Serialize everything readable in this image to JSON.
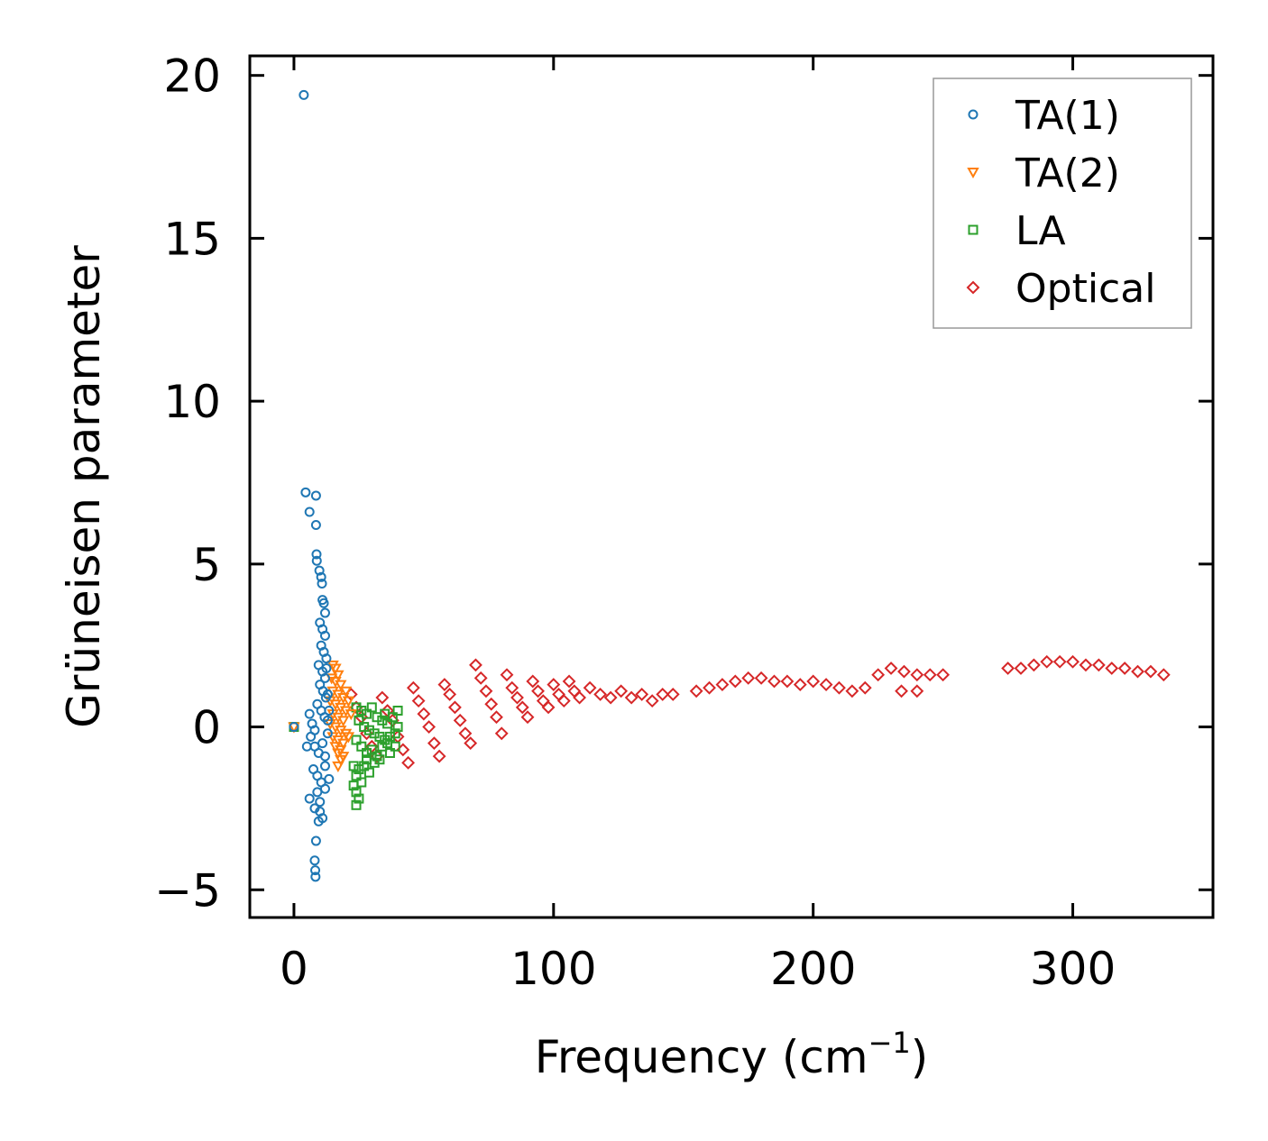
{
  "chart_data": {
    "type": "scatter",
    "title": "",
    "xlabel": "Frequency (cm",
    "xlabel_sup": "−1",
    "xlabel_end": ")",
    "ylabel": "Grüneisen parameter",
    "xlim": [
      -17,
      354
    ],
    "ylim": [
      -5.85,
      20.6
    ],
    "xticks": [
      0,
      100,
      200,
      300
    ],
    "xtick_labels": [
      "0",
      "100",
      "200",
      "300"
    ],
    "yticks": [
      -5,
      0,
      5,
      10,
      15,
      20
    ],
    "ytick_labels": [
      "−5",
      "0",
      "5",
      "10",
      "15",
      "20"
    ],
    "legend_position": "top-right",
    "series": [
      {
        "name": "TA(1)",
        "marker": "circle",
        "color": "#1f77b4",
        "points": [
          [
            0,
            0
          ],
          [
            3.8,
            19.4
          ],
          [
            4.5,
            7.2
          ],
          [
            8.5,
            7.1
          ],
          [
            6,
            6.6
          ],
          [
            8.5,
            6.2
          ],
          [
            8.7,
            5.3
          ],
          [
            8.8,
            5.1
          ],
          [
            9.8,
            4.8
          ],
          [
            10.5,
            4.6
          ],
          [
            10.8,
            4.4
          ],
          [
            11,
            3.9
          ],
          [
            11.5,
            3.8
          ],
          [
            12,
            3.5
          ],
          [
            10,
            3.2
          ],
          [
            11,
            3.0
          ],
          [
            12,
            2.8
          ],
          [
            10.5,
            2.5
          ],
          [
            11.5,
            2.3
          ],
          [
            12.5,
            2.1
          ],
          [
            9.5,
            1.9
          ],
          [
            11,
            1.7
          ],
          [
            12,
            1.5
          ],
          [
            10,
            1.3
          ],
          [
            11.2,
            1.1
          ],
          [
            12.3,
            0.9
          ],
          [
            9,
            0.7
          ],
          [
            10.5,
            0.5
          ],
          [
            11.8,
            0.3
          ],
          [
            13,
            0.2
          ],
          [
            6,
            0.4
          ],
          [
            7,
            0.1
          ],
          [
            8,
            -0.1
          ],
          [
            6.5,
            -0.3
          ],
          [
            5,
            -0.6
          ],
          [
            8,
            -0.6
          ],
          [
            9.5,
            -0.8
          ],
          [
            11,
            -0.5
          ],
          [
            12,
            -0.9
          ],
          [
            7.5,
            -1.3
          ],
          [
            9,
            -1.5
          ],
          [
            10.5,
            -1.7
          ],
          [
            12,
            -1.9
          ],
          [
            9,
            -2.0
          ],
          [
            10,
            -2.3
          ],
          [
            6,
            -2.2
          ],
          [
            8,
            -2.5
          ],
          [
            10,
            -2.6
          ],
          [
            11,
            -2.8
          ],
          [
            9.5,
            -2.9
          ],
          [
            8.5,
            -3.5
          ],
          [
            8,
            -4.1
          ],
          [
            8.2,
            -4.4
          ],
          [
            8.3,
            -4.6
          ],
          [
            12.5,
            1.8
          ],
          [
            13,
            1.0
          ],
          [
            13.5,
            0.5
          ],
          [
            13,
            -0.2
          ],
          [
            12,
            -1.2
          ],
          [
            13.5,
            -1.6
          ]
        ]
      },
      {
        "name": "TA(2)",
        "marker": "triangle",
        "color": "#ff7f0e",
        "points": [
          [
            0,
            0
          ],
          [
            15,
            1.9
          ],
          [
            16,
            1.8
          ],
          [
            17,
            1.6
          ],
          [
            14.5,
            1.5
          ],
          [
            16,
            1.4
          ],
          [
            18,
            1.3
          ],
          [
            15,
            1.1
          ],
          [
            17,
            1.0
          ],
          [
            19,
            0.9
          ],
          [
            14,
            0.8
          ],
          [
            16,
            0.7
          ],
          [
            18,
            0.6
          ],
          [
            20,
            0.5
          ],
          [
            15,
            0.4
          ],
          [
            17,
            0.3
          ],
          [
            19,
            0.2
          ],
          [
            14,
            0.1
          ],
          [
            16,
            0.0
          ],
          [
            18,
            -0.1
          ],
          [
            20,
            -0.2
          ],
          [
            15,
            -0.3
          ],
          [
            17,
            -0.4
          ],
          [
            19,
            -0.5
          ],
          [
            16,
            -0.6
          ],
          [
            18,
            -0.7
          ],
          [
            17,
            -0.8
          ],
          [
            19,
            -0.9
          ],
          [
            18,
            -1.0
          ],
          [
            17,
            -1.2
          ],
          [
            21,
            0.8
          ],
          [
            20,
            1.1
          ],
          [
            21,
            -0.3
          ],
          [
            22,
            0.4
          ]
        ]
      },
      {
        "name": "LA",
        "marker": "square",
        "color": "#2ca02c",
        "points": [
          [
            0,
            0
          ],
          [
            24,
            0.6
          ],
          [
            26,
            0.5
          ],
          [
            28,
            0.4
          ],
          [
            30,
            0.6
          ],
          [
            32,
            0.3
          ],
          [
            34,
            0.2
          ],
          [
            36,
            0.1
          ],
          [
            38,
            0.3
          ],
          [
            40,
            0.5
          ],
          [
            25,
            0.2
          ],
          [
            27,
            0.0
          ],
          [
            29,
            -0.1
          ],
          [
            31,
            -0.2
          ],
          [
            33,
            -0.3
          ],
          [
            35,
            -0.4
          ],
          [
            37,
            -0.3
          ],
          [
            39,
            -0.2
          ],
          [
            24,
            -0.4
          ],
          [
            26,
            -0.6
          ],
          [
            28,
            -0.8
          ],
          [
            30,
            -0.7
          ],
          [
            32,
            -0.9
          ],
          [
            34,
            -0.6
          ],
          [
            36,
            -0.5
          ],
          [
            23,
            -1.2
          ],
          [
            24,
            -1.5
          ],
          [
            25,
            -1.3
          ],
          [
            26,
            -1.7
          ],
          [
            27,
            -1.2
          ],
          [
            28,
            -1.0
          ],
          [
            24,
            -2.0
          ],
          [
            25,
            -2.2
          ],
          [
            24,
            -2.4
          ],
          [
            23,
            -1.8
          ],
          [
            29,
            -1.4
          ],
          [
            31,
            -1.1
          ],
          [
            33,
            -1.0
          ],
          [
            35,
            0.4
          ],
          [
            37,
            -0.8
          ],
          [
            39,
            -0.6
          ],
          [
            40,
            0.0
          ]
        ]
      },
      {
        "name": "Optical",
        "marker": "diamond",
        "color": "#d62728",
        "points": [
          [
            22,
            1.0
          ],
          [
            24,
            0.6
          ],
          [
            26,
            0.3
          ],
          [
            28,
            -0.2
          ],
          [
            30,
            -0.6
          ],
          [
            32,
            -0.9
          ],
          [
            34,
            0.9
          ],
          [
            36,
            0.5
          ],
          [
            38,
            0.2
          ],
          [
            40,
            -0.3
          ],
          [
            42,
            -0.7
          ],
          [
            44,
            -1.1
          ],
          [
            46,
            1.2
          ],
          [
            48,
            0.8
          ],
          [
            50,
            0.4
          ],
          [
            52,
            0.0
          ],
          [
            54,
            -0.5
          ],
          [
            56,
            -0.9
          ],
          [
            58,
            1.3
          ],
          [
            60,
            1.0
          ],
          [
            62,
            0.6
          ],
          [
            64,
            0.2
          ],
          [
            66,
            -0.2
          ],
          [
            68,
            -0.5
          ],
          [
            70,
            1.9
          ],
          [
            72,
            1.5
          ],
          [
            74,
            1.1
          ],
          [
            76,
            0.7
          ],
          [
            78,
            0.3
          ],
          [
            80,
            -0.2
          ],
          [
            82,
            1.6
          ],
          [
            84,
            1.2
          ],
          [
            86,
            0.9
          ],
          [
            88,
            0.6
          ],
          [
            90,
            0.3
          ],
          [
            92,
            1.4
          ],
          [
            94,
            1.1
          ],
          [
            96,
            0.8
          ],
          [
            98,
            0.6
          ],
          [
            100,
            1.3
          ],
          [
            102,
            1.0
          ],
          [
            104,
            0.8
          ],
          [
            106,
            1.4
          ],
          [
            108,
            1.1
          ],
          [
            110,
            0.9
          ],
          [
            114,
            1.2
          ],
          [
            118,
            1.0
          ],
          [
            122,
            0.9
          ],
          [
            126,
            1.1
          ],
          [
            130,
            0.9
          ],
          [
            134,
            1.0
          ],
          [
            138,
            0.8
          ],
          [
            142,
            1.0
          ],
          [
            146,
            1.0
          ],
          [
            155,
            1.1
          ],
          [
            160,
            1.2
          ],
          [
            165,
            1.3
          ],
          [
            170,
            1.4
          ],
          [
            175,
            1.5
          ],
          [
            180,
            1.5
          ],
          [
            185,
            1.4
          ],
          [
            190,
            1.4
          ],
          [
            195,
            1.3
          ],
          [
            200,
            1.4
          ],
          [
            205,
            1.3
          ],
          [
            210,
            1.2
          ],
          [
            215,
            1.1
          ],
          [
            220,
            1.2
          ],
          [
            225,
            1.6
          ],
          [
            230,
            1.8
          ],
          [
            235,
            1.7
          ],
          [
            240,
            1.6
          ],
          [
            245,
            1.6
          ],
          [
            250,
            1.6
          ],
          [
            234,
            1.1
          ],
          [
            240,
            1.1
          ],
          [
            275,
            1.8
          ],
          [
            280,
            1.8
          ],
          [
            285,
            1.9
          ],
          [
            290,
            2.0
          ],
          [
            295,
            2.0
          ],
          [
            300,
            2.0
          ],
          [
            305,
            1.9
          ],
          [
            310,
            1.9
          ],
          [
            315,
            1.8
          ],
          [
            320,
            1.8
          ],
          [
            325,
            1.7
          ],
          [
            330,
            1.7
          ],
          [
            335,
            1.6
          ]
        ]
      }
    ]
  }
}
